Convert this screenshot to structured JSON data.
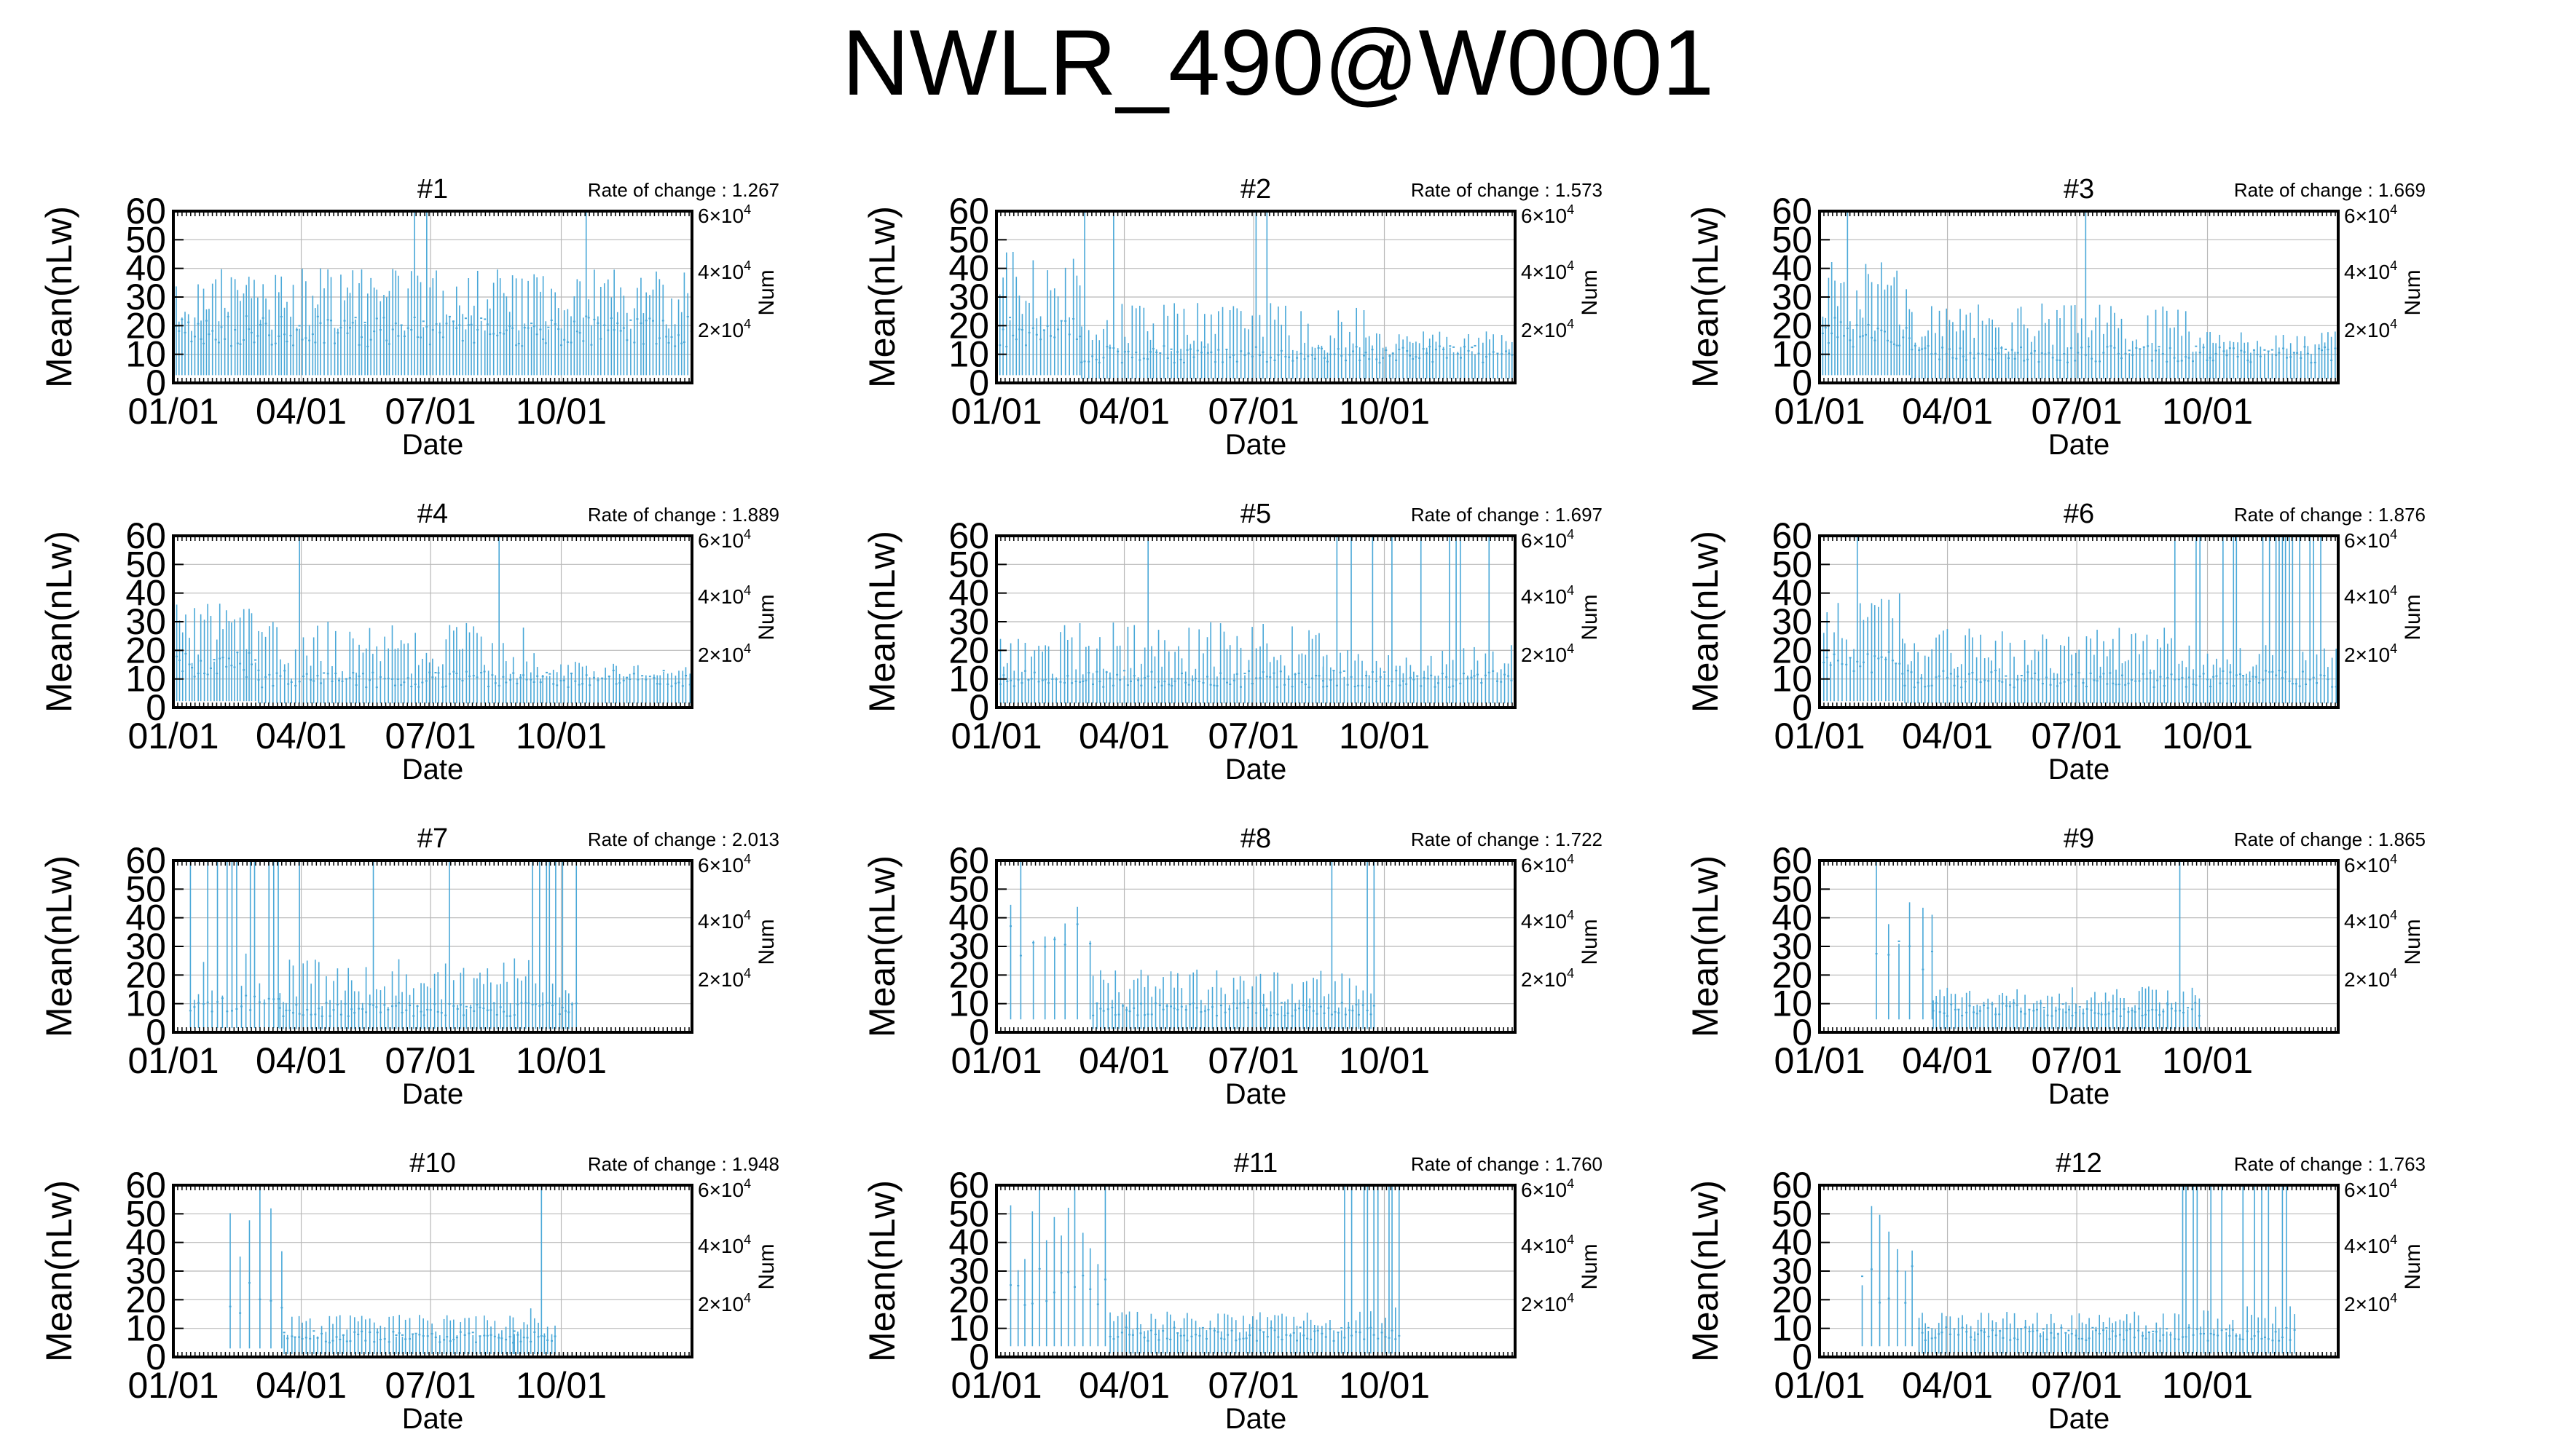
{
  "figure": {
    "title": "NWLR_490@W0001",
    "series_color": "#4aa8d8"
  },
  "chart_data": [
    {
      "type": "bar",
      "title": "#1",
      "annotation": "Rate of change : 1.267",
      "xlabel": "Date",
      "ylabel": "Mean(nLw)",
      "ylabel_right": "Num",
      "ylim": [
        0,
        60
      ],
      "yticks": [
        "0",
        "10",
        "20",
        "30",
        "40",
        "50",
        "60"
      ],
      "xticks": [
        "01/01",
        "04/01",
        "07/01",
        "10/01"
      ],
      "y2ticks": [
        {
          "mant": "2",
          "exp": "4"
        },
        {
          "mant": "4",
          "exp": "4"
        },
        {
          "mant": "6",
          "exp": "4"
        }
      ],
      "grid": true,
      "segments": [
        {
          "start": 0,
          "end": 365,
          "period": 2.2,
          "base": 18,
          "spread": 22,
          "spike": 0.02
        }
      ]
    },
    {
      "type": "bar",
      "title": "#2",
      "annotation": "Rate of change : 1.573",
      "xlabel": "Date",
      "ylabel": "Mean(nLw)",
      "ylabel_right": "Num",
      "ylim": [
        0,
        60
      ],
      "yticks": [
        "0",
        "10",
        "20",
        "30",
        "40",
        "50",
        "60"
      ],
      "xticks": [
        "01/01",
        "04/01",
        "07/01",
        "10/01"
      ],
      "y2ticks": [
        {
          "mant": "2",
          "exp": "4"
        },
        {
          "mant": "4",
          "exp": "4"
        },
        {
          "mant": "6",
          "exp": "4"
        }
      ],
      "grid": true,
      "segments": [
        {
          "start": 0,
          "end": 60,
          "period": 2.5,
          "base": 18,
          "spread": 28,
          "spike": 0.04
        },
        {
          "start": 60,
          "end": 260,
          "period": 2.5,
          "base": 10,
          "spread": 18,
          "spike": 0.03
        },
        {
          "start": 260,
          "end": 365,
          "period": 2.5,
          "base": 10,
          "spread": 8,
          "spike": 0.0
        }
      ]
    },
    {
      "type": "bar",
      "title": "#3",
      "annotation": "Rate of change : 1.669",
      "xlabel": "Date",
      "ylabel": "Mean(nLw)",
      "ylabel_right": "Num",
      "ylim": [
        0,
        60
      ],
      "yticks": [
        "0",
        "10",
        "20",
        "30",
        "40",
        "50",
        "60"
      ],
      "xticks": [
        "01/01",
        "04/01",
        "07/01",
        "10/01"
      ],
      "y2ticks": [
        {
          "mant": "2",
          "exp": "4"
        },
        {
          "mant": "4",
          "exp": "4"
        },
        {
          "mant": "6",
          "exp": "4"
        }
      ],
      "grid": true,
      "segments": [
        {
          "start": 0,
          "end": 65,
          "period": 2.2,
          "base": 18,
          "spread": 25,
          "spike": 0.03
        },
        {
          "start": 65,
          "end": 260,
          "period": 2.5,
          "base": 10,
          "spread": 18,
          "spike": 0.04
        },
        {
          "start": 260,
          "end": 365,
          "period": 2.5,
          "base": 10,
          "spread": 8,
          "spike": 0.0
        }
      ]
    },
    {
      "type": "bar",
      "title": "#4",
      "annotation": "Rate of change : 1.889",
      "xlabel": "Date",
      "ylabel": "Mean(nLw)",
      "ylabel_right": "Num",
      "ylim": [
        0,
        60
      ],
      "yticks": [
        "0",
        "10",
        "20",
        "30",
        "40",
        "50",
        "60"
      ],
      "xticks": [
        "01/01",
        "04/01",
        "07/01",
        "10/01"
      ],
      "y2ticks": [
        {
          "mant": "2",
          "exp": "4"
        },
        {
          "mant": "4",
          "exp": "4"
        },
        {
          "mant": "6",
          "exp": "4"
        }
      ],
      "grid": true,
      "segments": [
        {
          "start": 0,
          "end": 60,
          "period": 2.2,
          "base": 15,
          "spread": 22,
          "spike": 0.0
        },
        {
          "start": 60,
          "end": 260,
          "period": 2.5,
          "base": 10,
          "spread": 20,
          "spike": 0.04
        },
        {
          "start": 260,
          "end": 365,
          "period": 2.5,
          "base": 10,
          "spread": 6,
          "spike": 0.0
        }
      ]
    },
    {
      "type": "bar",
      "title": "#5",
      "annotation": "Rate of change : 1.697",
      "xlabel": "Date",
      "ylabel": "Mean(nLw)",
      "ylabel_right": "Num",
      "ylim": [
        0,
        60
      ],
      "yticks": [
        "0",
        "10",
        "20",
        "30",
        "40",
        "50",
        "60"
      ],
      "xticks": [
        "01/01",
        "04/01",
        "07/01",
        "10/01"
      ],
      "y2ticks": [
        {
          "mant": "2",
          "exp": "4"
        },
        {
          "mant": "4",
          "exp": "4"
        },
        {
          "mant": "6",
          "exp": "4"
        }
      ],
      "grid": true,
      "segments": [
        {
          "start": 0,
          "end": 230,
          "period": 2.5,
          "base": 10,
          "spread": 20,
          "spike": 0.03
        },
        {
          "start": 230,
          "end": 365,
          "period": 2.5,
          "base": 10,
          "spread": 12,
          "spike": 0.08
        }
      ]
    },
    {
      "type": "bar",
      "title": "#6",
      "annotation": "Rate of change : 1.876",
      "xlabel": "Date",
      "ylabel": "Mean(nLw)",
      "ylabel_right": "Num",
      "ylim": [
        0,
        60
      ],
      "yticks": [
        "0",
        "10",
        "20",
        "30",
        "40",
        "50",
        "60"
      ],
      "xticks": [
        "01/01",
        "04/01",
        "07/01",
        "10/01"
      ],
      "y2ticks": [
        {
          "mant": "2",
          "exp": "4"
        },
        {
          "mant": "4",
          "exp": "4"
        },
        {
          "mant": "6",
          "exp": "4"
        }
      ],
      "grid": true,
      "segments": [
        {
          "start": 0,
          "end": 60,
          "period": 2.5,
          "base": 15,
          "spread": 25,
          "spike": 0.06
        },
        {
          "start": 60,
          "end": 265,
          "period": 2.5,
          "base": 10,
          "spread": 18,
          "spike": 0.04
        },
        {
          "start": 265,
          "end": 365,
          "period": 2.5,
          "base": 10,
          "spread": 12,
          "spike": 0.45
        }
      ]
    },
    {
      "type": "bar",
      "title": "#7",
      "annotation": "Rate of change : 2.013",
      "xlabel": "Date",
      "ylabel": "Mean(nLw)",
      "ylabel_right": "Num",
      "ylim": [
        0,
        60
      ],
      "yticks": [
        "0",
        "10",
        "20",
        "30",
        "40",
        "50",
        "60"
      ],
      "xticks": [
        "01/01",
        "04/01",
        "07/01",
        "10/01"
      ],
      "y2ticks": [
        {
          "mant": "2",
          "exp": "4"
        },
        {
          "mant": "4",
          "exp": "4"
        },
        {
          "mant": "6",
          "exp": "4"
        }
      ],
      "grid": true,
      "segments": [
        {
          "start": 12,
          "end": 75,
          "period": 3.2,
          "base": 10,
          "spread": 20,
          "spike": 0.55
        },
        {
          "start": 75,
          "end": 255,
          "period": 2.5,
          "base": 8,
          "spread": 18,
          "spike": 0.02
        },
        {
          "start": 255,
          "end": 285,
          "period": 2.5,
          "base": 8,
          "spread": 12,
          "spike": 0.45
        }
      ]
    },
    {
      "type": "bar",
      "title": "#8",
      "annotation": "Rate of change : 1.722",
      "xlabel": "Date",
      "ylabel": "Mean(nLw)",
      "ylabel_right": "Num",
      "ylim": [
        0,
        60
      ],
      "yticks": [
        "0",
        "10",
        "20",
        "30",
        "40",
        "50",
        "60"
      ],
      "xticks": [
        "01/01",
        "04/01",
        "07/01",
        "10/01"
      ],
      "y2ticks": [
        {
          "mant": "2",
          "exp": "4"
        },
        {
          "mant": "4",
          "exp": "4"
        },
        {
          "mant": "6",
          "exp": "4"
        }
      ],
      "grid": true,
      "segments": [
        {
          "start": 10,
          "end": 68,
          "period": 8,
          "base": 30,
          "spread": 20,
          "spike": 0.4
        },
        {
          "start": 68,
          "end": 255,
          "period": 2.6,
          "base": 8,
          "spread": 14,
          "spike": 0.02
        },
        {
          "start": 255,
          "end": 268,
          "period": 2.6,
          "base": 8,
          "spread": 10,
          "spike": 0.5
        }
      ]
    },
    {
      "type": "bar",
      "title": "#9",
      "annotation": "Rate of change : 1.865",
      "xlabel": "Date",
      "ylabel": "Mean(nLw)",
      "ylabel_right": "Num",
      "ylim": [
        0,
        60
      ],
      "yticks": [
        "0",
        "10",
        "20",
        "30",
        "40",
        "50",
        "60"
      ],
      "xticks": [
        "01/01",
        "04/01",
        "07/01",
        "10/01"
      ],
      "y2ticks": [
        {
          "mant": "2",
          "exp": "4"
        },
        {
          "mant": "4",
          "exp": "4"
        },
        {
          "mant": "6",
          "exp": "4"
        }
      ],
      "grid": true,
      "segments": [
        {
          "start": 40,
          "end": 80,
          "period": 8,
          "base": 30,
          "spread": 25,
          "spike": 0.3
        },
        {
          "start": 80,
          "end": 245,
          "period": 2.6,
          "base": 8,
          "spread": 8,
          "spike": 0.01
        },
        {
          "start": 245,
          "end": 270,
          "period": 2.6,
          "base": 8,
          "spread": 8,
          "spike": 0.35
        }
      ]
    },
    {
      "type": "bar",
      "title": "#10",
      "annotation": "Rate of change : 1.948",
      "xlabel": "Date",
      "ylabel": "Mean(nLw)",
      "ylabel_right": "Num",
      "ylim": [
        0,
        60
      ],
      "yticks": [
        "0",
        "10",
        "20",
        "30",
        "40",
        "50",
        "60"
      ],
      "xticks": [
        "01/01",
        "04/01",
        "07/01",
        "10/01"
      ],
      "y2ticks": [
        {
          "mant": "2",
          "exp": "4"
        },
        {
          "mant": "4",
          "exp": "4"
        },
        {
          "mant": "6",
          "exp": "4"
        }
      ],
      "grid": true,
      "segments": [
        {
          "start": 40,
          "end": 78,
          "period": 7,
          "base": 20,
          "spread": 35,
          "spike": 0.35
        },
        {
          "start": 78,
          "end": 240,
          "period": 2.6,
          "base": 7,
          "spread": 8,
          "spike": 0.0
        },
        {
          "start": 240,
          "end": 270,
          "period": 2.6,
          "base": 7,
          "spread": 10,
          "spike": 0.4
        }
      ]
    },
    {
      "type": "bar",
      "title": "#11",
      "annotation": "Rate of change : 1.760",
      "xlabel": "Date",
      "ylabel": "Mean(nLw)",
      "ylabel_right": "Num",
      "ylim": [
        0,
        60
      ],
      "yticks": [
        "0",
        "10",
        "20",
        "30",
        "40",
        "50",
        "60"
      ],
      "xticks": [
        "01/01",
        "04/01",
        "07/01",
        "10/01"
      ],
      "y2ticks": [
        {
          "mant": "2",
          "exp": "4"
        },
        {
          "mant": "4",
          "exp": "4"
        },
        {
          "mant": "6",
          "exp": "4"
        }
      ],
      "grid": true,
      "segments": [
        {
          "start": 10,
          "end": 80,
          "period": 5,
          "base": 25,
          "spread": 30,
          "spike": 0.4
        },
        {
          "start": 80,
          "end": 245,
          "period": 2.6,
          "base": 8,
          "spread": 8,
          "spike": 0.0
        },
        {
          "start": 245,
          "end": 285,
          "period": 2.6,
          "base": 8,
          "spread": 10,
          "spike": 0.5
        }
      ]
    },
    {
      "type": "bar",
      "title": "#12",
      "annotation": "Rate of change : 1.763",
      "xlabel": "Date",
      "ylabel": "Mean(nLw)",
      "ylabel_right": "Num",
      "ylim": [
        0,
        60
      ],
      "yticks": [
        "0",
        "10",
        "20",
        "30",
        "40",
        "50",
        "60"
      ],
      "xticks": [
        "01/01",
        "04/01",
        "07/01",
        "10/01"
      ],
      "y2ticks": [
        {
          "mant": "2",
          "exp": "4"
        },
        {
          "mant": "4",
          "exp": "4"
        },
        {
          "mant": "6",
          "exp": "4"
        }
      ],
      "grid": true,
      "segments": [
        {
          "start": 30,
          "end": 70,
          "period": 6,
          "base": 25,
          "spread": 30,
          "spike": 0.35
        },
        {
          "start": 70,
          "end": 250,
          "period": 2.6,
          "base": 8,
          "spread": 8,
          "spike": 0.0
        },
        {
          "start": 250,
          "end": 335,
          "period": 2.6,
          "base": 8,
          "spread": 10,
          "spike": 0.45
        }
      ]
    }
  ]
}
